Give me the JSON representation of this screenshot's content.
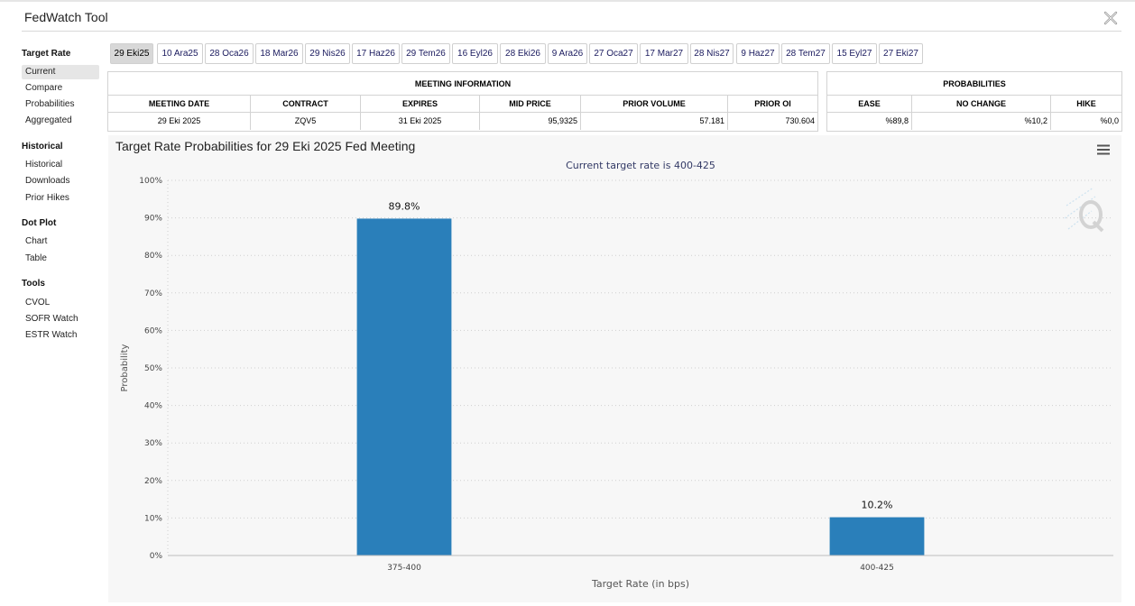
{
  "app": {
    "title": "FedWatch Tool"
  },
  "sidebar": {
    "sections": [
      {
        "heading": "Target Rate",
        "items": [
          "Current",
          "Compare",
          "Probabilities",
          "Aggregated"
        ]
      },
      {
        "heading": "Historical",
        "items": [
          "Historical",
          "Downloads",
          "Prior Hikes"
        ]
      },
      {
        "heading": "Dot Plot",
        "items": [
          "Chart",
          "Table"
        ]
      },
      {
        "heading": "Tools",
        "items": [
          "CVOL",
          "SOFR Watch",
          "ESTR Watch"
        ]
      }
    ],
    "active_item": "Current"
  },
  "tabs": [
    "29 Eki25",
    "10 Ara25",
    "28 Oca26",
    "18 Mar26",
    "29 Nis26",
    "17 Haz26",
    "29 Tem26",
    "16 Eyl26",
    "28 Eki26",
    "9 Ara26",
    "27 Oca27",
    "17 Mar27",
    "28 Nis27",
    "9 Haz27",
    "28 Tem27",
    "15 Eyl27",
    "27 Eki27"
  ],
  "active_tab": "29 Eki25",
  "meeting_info": {
    "title": "MEETING INFORMATION",
    "headers": [
      "MEETING DATE",
      "CONTRACT",
      "EXPIRES",
      "MID PRICE",
      "PRIOR VOLUME",
      "PRIOR OI"
    ],
    "values": [
      "29 Eki 2025",
      "ZQV5",
      "31 Eki 2025",
      "95,9325",
      "57.181",
      "730.604"
    ]
  },
  "probabilities": {
    "title": "PROBABILITIES",
    "headers": [
      "EASE",
      "NO CHANGE",
      "HIKE"
    ],
    "values": [
      "%89,8",
      "%10,2",
      "%0,0"
    ]
  },
  "chart_data": {
    "type": "bar",
    "title": "Target Rate Probabilities for 29 Eki 2025 Fed Meeting",
    "subtitle": "Current target rate is 400-425",
    "categories": [
      "375-400",
      "400-425"
    ],
    "values": [
      89.8,
      10.2
    ],
    "data_labels": [
      "89.8%",
      "10.2%"
    ],
    "xlabel": "Target Rate (in bps)",
    "ylabel": "Probability",
    "ylim": [
      0,
      100
    ],
    "yticks": [
      "0%",
      "10%",
      "20%",
      "30%",
      "40%",
      "50%",
      "60%",
      "70%",
      "80%",
      "90%",
      "100%"
    ],
    "bar_color": "#2a7fba",
    "grid": true
  }
}
